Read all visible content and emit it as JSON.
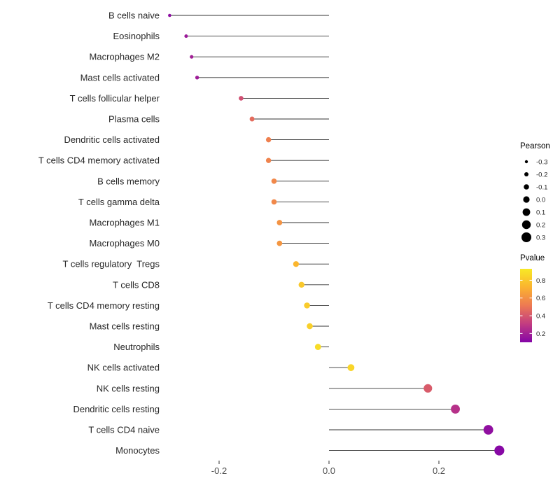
{
  "chart_data": {
    "type": "lollipop",
    "title": "",
    "xlabel": "",
    "ylabel": "",
    "categories": [
      "B cells naive",
      "Eosinophils",
      "Macrophages M2",
      "Mast cells activated",
      "T cells follicular helper",
      "Plasma cells",
      "Dendritic cells activated",
      "T cells CD4 memory activated",
      "B cells memory",
      "T cells gamma delta",
      "Macrophages M1",
      "Macrophages M0",
      "T cells regulatory  Tregs",
      "T cells CD8",
      "T cells CD4 memory resting",
      "Mast cells resting",
      "Neutrophils",
      "NK cells activated",
      "NK cells resting",
      "Dendritic cells resting",
      "T cells CD4 naive",
      "Monocytes"
    ],
    "series": [
      {
        "name": "Pearson",
        "values": [
          -0.29,
          -0.26,
          -0.25,
          -0.24,
          -0.16,
          -0.14,
          -0.11,
          -0.11,
          -0.1,
          -0.1,
          -0.09,
          -0.09,
          -0.06,
          -0.05,
          -0.04,
          -0.035,
          -0.02,
          0.04,
          0.18,
          0.23,
          0.29,
          0.31
        ]
      },
      {
        "name": "Pvalue",
        "values": [
          0.13,
          0.18,
          0.2,
          0.19,
          0.38,
          0.48,
          0.55,
          0.56,
          0.58,
          0.58,
          0.62,
          0.63,
          0.75,
          0.82,
          0.83,
          0.85,
          0.9,
          0.87,
          0.42,
          0.27,
          0.14,
          0.11
        ]
      }
    ],
    "x_axis": {
      "ticks": [
        "-0.2",
        "0.0",
        "0.2"
      ],
      "tick_values": [
        -0.2,
        0.0,
        0.2
      ],
      "range": [
        -0.35,
        0.37
      ],
      "grid": false
    },
    "legend": {
      "position": "right",
      "size": {
        "title": "Pearson",
        "labels": [
          "-0.3",
          "-0.2",
          "-0.1",
          "0.0",
          "0.1",
          "0.2",
          "0.3"
        ],
        "values": [
          -0.3,
          -0.2,
          -0.1,
          0.0,
          0.1,
          0.2,
          0.3
        ]
      },
      "color": {
        "title": "Pvalue",
        "labels": [
          "0.8",
          "0.6",
          "0.4",
          "0.2"
        ],
        "values": [
          0.8,
          0.6,
          0.4,
          0.2
        ],
        "gradient": [
          "#F7E926",
          "#FBB32F",
          "#ED7953",
          "#C23C81",
          "#8405A7"
        ]
      }
    },
    "colors": {
      "stem": "#333333",
      "legend_dot": "#000000",
      "background": "#ffffff"
    }
  }
}
